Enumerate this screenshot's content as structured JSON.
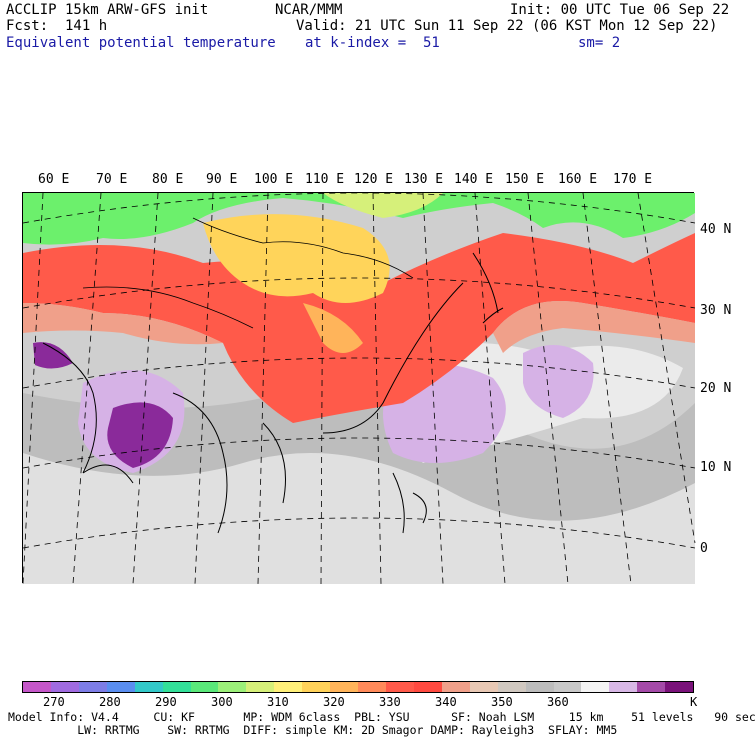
{
  "header": {
    "model": "ACCLIP 15km ARW-GFS init",
    "forecast": "Fcst:  141 h",
    "org": "NCAR/MMM",
    "init": "Init: 00 UTC Tue 06 Sep 22",
    "valid": "Valid: 21 UTC Sun 11 Sep 22 (06 KST Mon 12 Sep 22)",
    "field": "Equivalent potential temperature",
    "level": "at k-index =  51",
    "smooth": "sm= 2"
  },
  "map": {
    "lon_labels": [
      "60 E",
      "70 E",
      "80 E",
      "90 E",
      "100 E",
      "110 E",
      "120 E",
      "130 E",
      "140 E",
      "150 E",
      "160 E",
      "170 E"
    ],
    "lat_labels": [
      "40 N",
      "30 N",
      "20 N",
      "10 N",
      "0"
    ],
    "colors": {
      "cold": "#d6b2e6",
      "warm": "#ff5a4a",
      "hot": "#ffd45a",
      "green": "#6cf06c",
      "gray": "#c8c8c8",
      "purple": "#8a2a9a"
    }
  },
  "colorbar": {
    "colors": [
      "#c557c9",
      "#a06be0",
      "#7d7de6",
      "#5a8ef0",
      "#33c9c9",
      "#33e099",
      "#5ae87a",
      "#9cf07a",
      "#d6f07a",
      "#fff07a",
      "#ffd25a",
      "#ffb45a",
      "#ff8a5a",
      "#ff5a4a",
      "#ff4a40",
      "#f0a08a",
      "#e8c8b4",
      "#d0c8c0",
      "#bcbcbc",
      "#c8c8c8",
      "#f4f4f4",
      "#d8b8e6",
      "#a44aa8",
      "#7a127a"
    ],
    "labels": [
      "270",
      "280",
      "290",
      "300",
      "310",
      "320",
      "330",
      "340",
      "350",
      "360"
    ],
    "unit": "K"
  },
  "footer": {
    "line1": "Model Info: V4.4     CU: KF       MP: WDM 6class  PBL: YSU      SF: Noah LSM     15 km    51 levels   90 sec",
    "line2": "          LW: RRTMG    SW: RRTMG  DIFF: simple KM: 2D Smagor DAMP: Rayleigh3  SFLAY: MM5"
  }
}
